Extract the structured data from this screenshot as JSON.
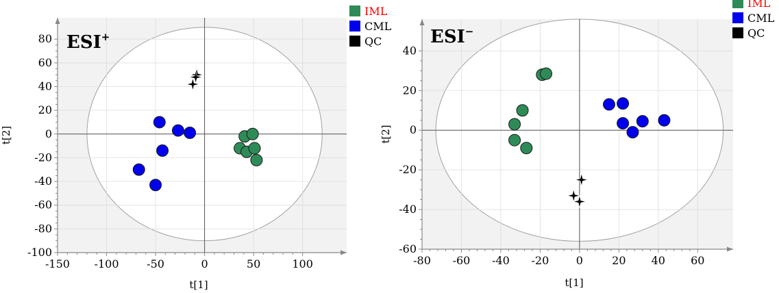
{
  "colors": {
    "iml": "#2e8b57",
    "cml": "#0000ee",
    "qc": "#000000",
    "iml_label": "#ff0000",
    "other_label": "#000000",
    "plot_bg": "#f2f2f2",
    "grid": "#e2e2e2",
    "ellipse": "#a0a0a0"
  },
  "legend": [
    {
      "label": "IML",
      "color_key": "iml",
      "text_color_key": "iml_label",
      "icon": "square"
    },
    {
      "label": "CML",
      "color_key": "cml",
      "text_color_key": "other_label",
      "icon": "square"
    },
    {
      "label": "QC",
      "color_key": "qc",
      "text_color_key": "other_label",
      "icon": "square"
    }
  ],
  "chart_data": [
    {
      "type": "scatter",
      "panel_label": "ESI",
      "panel_label_sup": "+",
      "xlabel": "t[1]",
      "ylabel": "t[2]",
      "xlim": [
        -150,
        145
      ],
      "ylim": [
        -100,
        98
      ],
      "xticks": [
        -150,
        -100,
        -50,
        0,
        50,
        100
      ],
      "yticks": [
        -100,
        -80,
        -60,
        -40,
        -20,
        0,
        20,
        40,
        60,
        80
      ],
      "grid": true,
      "ellipse": {
        "cx": 0,
        "cy": 0,
        "rx": 120,
        "ry": 90
      },
      "series": [
        {
          "name": "IML",
          "color_key": "iml",
          "marker": "circle",
          "x": [
            41,
            49,
            36,
            43,
            51,
            53
          ],
          "y": [
            -2,
            0,
            -12,
            -15,
            -12,
            -22
          ]
        },
        {
          "name": "CML",
          "color_key": "cml",
          "marker": "circle",
          "x": [
            -46,
            -27,
            -15,
            -43,
            -67,
            -50
          ],
          "y": [
            10,
            3,
            1,
            -14,
            -30,
            -43
          ]
        },
        {
          "name": "QC",
          "color_key": "qc",
          "marker": "star",
          "x": [
            -8,
            -9,
            -12
          ],
          "y": [
            50,
            48,
            42
          ]
        }
      ]
    },
    {
      "type": "scatter",
      "panel_label": "ESI",
      "panel_label_sup": "−",
      "xlabel": "t[1]",
      "ylabel": "t[2]",
      "xlim": [
        -80,
        78
      ],
      "ylim": [
        -60,
        56
      ],
      "xticks": [
        -80,
        -60,
        -40,
        -20,
        0,
        20,
        40,
        60
      ],
      "yticks": [
        -60,
        -40,
        -20,
        0,
        20,
        40
      ],
      "grid": true,
      "ellipse": {
        "cx": 0,
        "cy": 0,
        "rx": 73,
        "ry": 56
      },
      "series": [
        {
          "name": "IML",
          "color_key": "iml",
          "marker": "circle",
          "x": [
            -19,
            -17,
            -29,
            -33,
            -33,
            -27
          ],
          "y": [
            28,
            28.5,
            10,
            3,
            -5,
            -9
          ]
        },
        {
          "name": "CML",
          "color_key": "cml",
          "marker": "circle",
          "x": [
            15,
            22,
            22,
            32,
            27,
            43
          ],
          "y": [
            13,
            13.5,
            3.5,
            4.5,
            -1,
            5
          ]
        },
        {
          "name": "QC",
          "color_key": "qc",
          "marker": "star",
          "x": [
            1,
            -3,
            0
          ],
          "y": [
            -25,
            -33,
            -36
          ]
        }
      ]
    }
  ]
}
